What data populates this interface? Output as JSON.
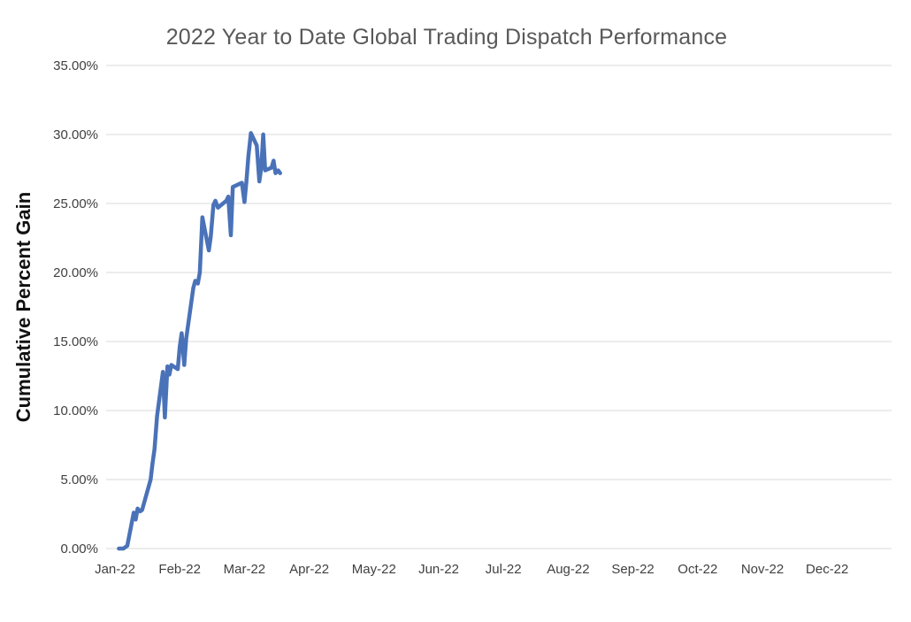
{
  "chart_data": {
    "type": "line",
    "title": "2022 Year to Date Global Trading Dispatch Performance",
    "xlabel": "",
    "ylabel": "Cumulative Percent Gain",
    "legend": "none",
    "grid": "horizontal",
    "ylim": [
      0,
      35
    ],
    "xlim_months": [
      0,
      12
    ],
    "title_color": "#595959",
    "tick_label_color": "#404040",
    "gridline_color": "#d9d9d9",
    "line_color": "#4a72b8",
    "x_tick_labels": [
      "Jan-22",
      "Feb-22",
      "Mar-22",
      "Apr-22",
      "May-22",
      "Jun-22",
      "Jul-22",
      "Aug-22",
      "Sep-22",
      "Oct-22",
      "Nov-22",
      "Dec-22"
    ],
    "y_ticks": [
      {
        "v": 0,
        "label": "0.00%"
      },
      {
        "v": 5,
        "label": "5.00%"
      },
      {
        "v": 10,
        "label": "10.00%"
      },
      {
        "v": 15,
        "label": "15.00%"
      },
      {
        "v": 20,
        "label": "20.00%"
      },
      {
        "v": 25,
        "label": "25.00%"
      },
      {
        "v": 30,
        "label": "30.00%"
      },
      {
        "v": 35,
        "label": "35.00%"
      }
    ],
    "series": [
      {
        "name": "Cumulative Percent Gain",
        "points": [
          {
            "d": "Jan-03",
            "m": 0.06,
            "v": 0.0
          },
          {
            "d": "Jan-04",
            "m": 0.1,
            "v": 0.0
          },
          {
            "d": "Jan-05",
            "m": 0.13,
            "v": 0.0
          },
          {
            "d": "Jan-06",
            "m": 0.16,
            "v": 0.1
          },
          {
            "d": "Jan-07",
            "m": 0.19,
            "v": 0.2
          },
          {
            "d": "Jan-10",
            "m": 0.29,
            "v": 2.6
          },
          {
            "d": "Jan-11",
            "m": 0.32,
            "v": 2.1
          },
          {
            "d": "Jan-12",
            "m": 0.35,
            "v": 2.9
          },
          {
            "d": "Jan-13",
            "m": 0.39,
            "v": 2.7
          },
          {
            "d": "Jan-14",
            "m": 0.42,
            "v": 2.8
          },
          {
            "d": "Jan-18",
            "m": 0.55,
            "v": 5.0
          },
          {
            "d": "Jan-19",
            "m": 0.58,
            "v": 6.2
          },
          {
            "d": "Jan-20",
            "m": 0.61,
            "v": 7.2
          },
          {
            "d": "Jan-21",
            "m": 0.65,
            "v": 9.6
          },
          {
            "d": "Jan-24",
            "m": 0.74,
            "v": 12.8
          },
          {
            "d": "Jan-25",
            "m": 0.77,
            "v": 9.5
          },
          {
            "d": "Jan-26",
            "m": 0.81,
            "v": 13.2
          },
          {
            "d": "Jan-27",
            "m": 0.84,
            "v": 12.6
          },
          {
            "d": "Jan-28",
            "m": 0.87,
            "v": 13.3
          },
          {
            "d": "Jan-31",
            "m": 0.97,
            "v": 13.0
          },
          {
            "d": "Feb-01",
            "m": 1.0,
            "v": 14.6
          },
          {
            "d": "Feb-02",
            "m": 1.03,
            "v": 15.6
          },
          {
            "d": "Feb-03",
            "m": 1.07,
            "v": 13.3
          },
          {
            "d": "Feb-04",
            "m": 1.1,
            "v": 15.2
          },
          {
            "d": "Feb-07",
            "m": 1.21,
            "v": 18.9
          },
          {
            "d": "Feb-08",
            "m": 1.24,
            "v": 19.4
          },
          {
            "d": "Feb-09",
            "m": 1.28,
            "v": 19.2
          },
          {
            "d": "Feb-10",
            "m": 1.31,
            "v": 20.0
          },
          {
            "d": "Feb-11",
            "m": 1.35,
            "v": 24.0
          },
          {
            "d": "Feb-14",
            "m": 1.45,
            "v": 21.6
          },
          {
            "d": "Feb-15",
            "m": 1.48,
            "v": 22.6
          },
          {
            "d": "Feb-16",
            "m": 1.52,
            "v": 24.9
          },
          {
            "d": "Feb-17",
            "m": 1.55,
            "v": 25.2
          },
          {
            "d": "Feb-18",
            "m": 1.59,
            "v": 24.7
          },
          {
            "d": "Feb-22",
            "m": 1.72,
            "v": 25.2
          },
          {
            "d": "Feb-23",
            "m": 1.75,
            "v": 25.5
          },
          {
            "d": "Feb-24",
            "m": 1.79,
            "v": 22.7
          },
          {
            "d": "Feb-25",
            "m": 1.82,
            "v": 26.2
          },
          {
            "d": "Feb-28",
            "m": 1.96,
            "v": 26.5
          },
          {
            "d": "Mar-01",
            "m": 2.0,
            "v": 25.1
          },
          {
            "d": "Mar-02",
            "m": 2.03,
            "v": 26.6
          },
          {
            "d": "Mar-03",
            "m": 2.06,
            "v": 28.4
          },
          {
            "d": "Mar-04",
            "m": 2.1,
            "v": 30.1
          },
          {
            "d": "Mar-07",
            "m": 2.19,
            "v": 29.2
          },
          {
            "d": "Mar-08",
            "m": 2.23,
            "v": 26.6
          },
          {
            "d": "Mar-09",
            "m": 2.26,
            "v": 27.6
          },
          {
            "d": "Mar-10",
            "m": 2.29,
            "v": 30.0
          },
          {
            "d": "Mar-11",
            "m": 2.32,
            "v": 27.4
          },
          {
            "d": "Mar-14",
            "m": 2.42,
            "v": 27.6
          },
          {
            "d": "Mar-15",
            "m": 2.45,
            "v": 28.1
          },
          {
            "d": "Mar-16",
            "m": 2.48,
            "v": 27.2
          },
          {
            "d": "Mar-17",
            "m": 2.52,
            "v": 27.4
          },
          {
            "d": "Mar-18",
            "m": 2.55,
            "v": 27.2
          }
        ]
      }
    ]
  }
}
